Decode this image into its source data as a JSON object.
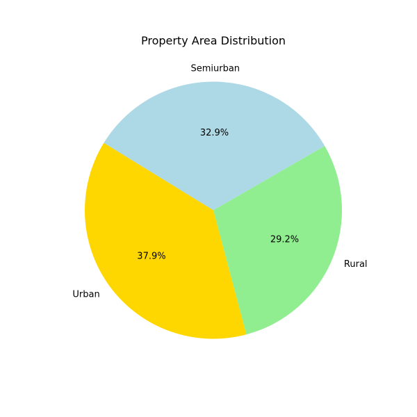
{
  "chart_data": {
    "type": "pie",
    "title": "Property Area Distribution",
    "labels": [
      "Semiurban",
      "Urban",
      "Rural"
    ],
    "values": [
      32.9,
      37.9,
      29.2
    ],
    "percent_labels": [
      "32.9%",
      "37.9%",
      "29.2%"
    ],
    "colors": [
      "#add8e6",
      "#ffd700",
      "#90ee90"
    ],
    "start_angle_deg": 30,
    "direction": "counterclockwise"
  }
}
